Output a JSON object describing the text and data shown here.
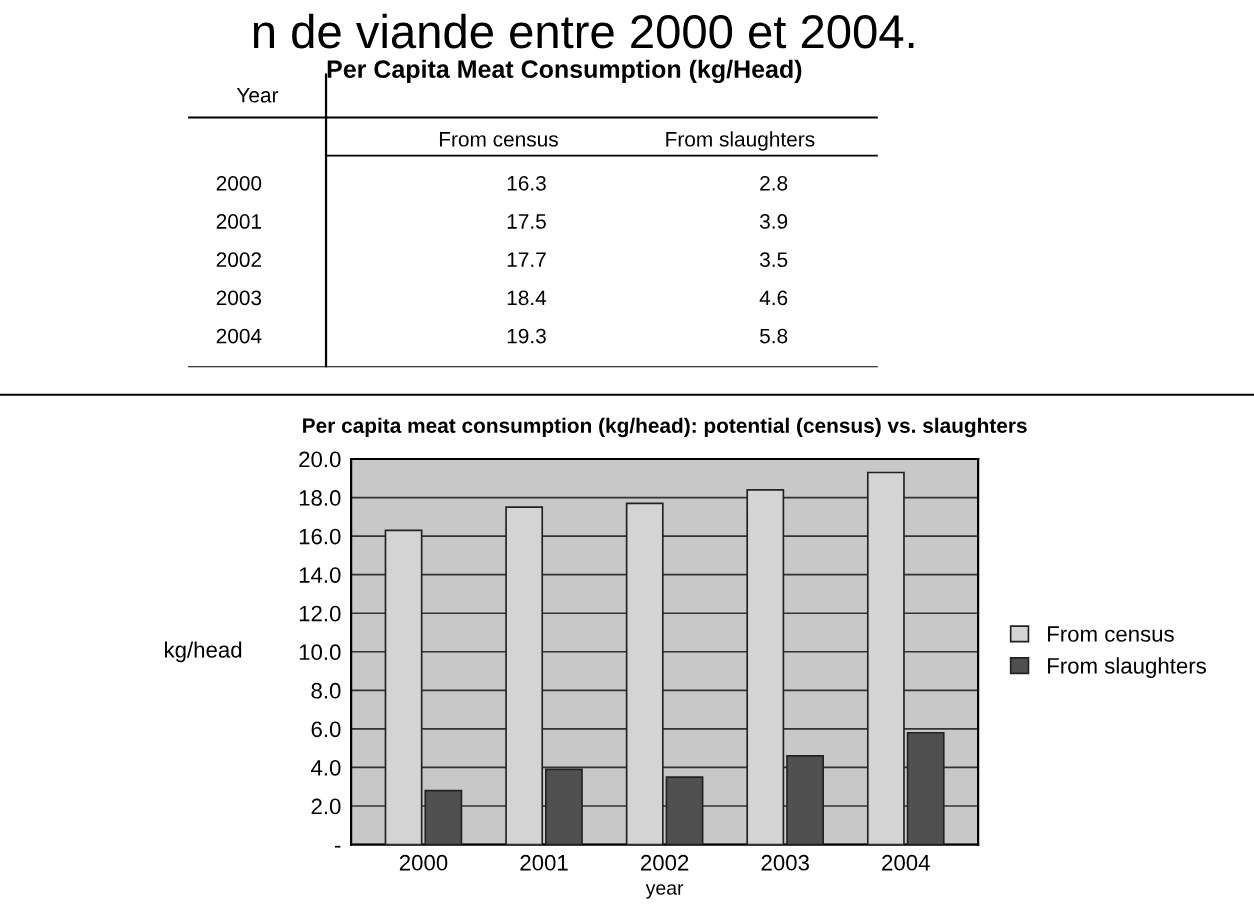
{
  "chart_data": {
    "type": "bar",
    "title": "Per capita meat consumption (kg/head): potential (census) vs. slaughters",
    "xlabel": "year",
    "ylabel": "kg/head",
    "categories": [
      "2000",
      "2001",
      "2002",
      "2003",
      "2004"
    ],
    "series": [
      {
        "name": "From census",
        "color": "#d4d4d4",
        "values": [
          16.3,
          17.5,
          17.7,
          18.4,
          19.3
        ]
      },
      {
        "name": "From slaughters",
        "color": "#505050",
        "values": [
          2.8,
          3.9,
          3.5,
          4.6,
          5.8
        ]
      }
    ],
    "ylim": [
      0,
      20
    ],
    "yticks": [
      {
        "value": 0,
        "label": "-"
      },
      {
        "value": 2,
        "label": "2.0"
      },
      {
        "value": 4,
        "label": "4.0"
      },
      {
        "value": 6,
        "label": "6.0"
      },
      {
        "value": 8,
        "label": "8.0"
      },
      {
        "value": 10,
        "label": "10.0"
      },
      {
        "value": 12,
        "label": "12.0"
      },
      {
        "value": 14,
        "label": "14.0"
      },
      {
        "value": 16,
        "label": "16.0"
      },
      {
        "value": 18,
        "label": "18.0"
      },
      {
        "value": 20,
        "label": "20.0"
      }
    ],
    "grid": "y",
    "legend": "right",
    "annotations": [
      "n de viande entre 2000 et 2004.",
      "Per Capita Meat Consumption (kg/Head)",
      "Year",
      "From census",
      "From slaughters",
      "2000",
      "16.3",
      "2.8",
      "2001",
      "17.5",
      "3.9",
      "2002",
      "17.7",
      "3.5",
      "2003",
      "18.4",
      "4.6",
      "2004",
      "19.3",
      "5.8"
    ]
  }
}
